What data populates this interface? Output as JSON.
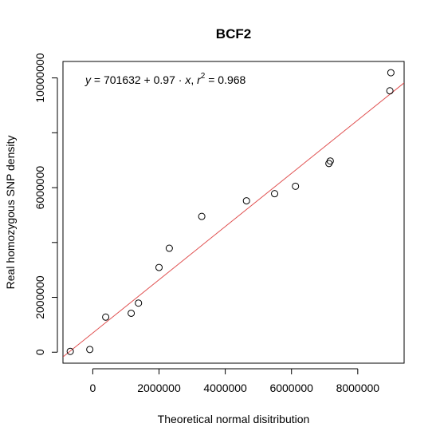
{
  "chart_data": {
    "type": "scatter",
    "title": "BCF2",
    "xlabel": "Theoretical normal disitribution",
    "ylabel": "Real homozygous SNP density",
    "xlim": [
      -900000,
      9400000
    ],
    "ylim": [
      -400000,
      10600000
    ],
    "x_ticks": [
      0,
      2000000,
      4000000,
      6000000,
      8000000
    ],
    "x_tick_labels": [
      "0",
      "2000000",
      "4000000",
      "6000000",
      "8000000"
    ],
    "y_ticks": [
      0,
      2000000,
      4000000,
      6000000,
      8000000,
      10000000
    ],
    "y_tick_labels": [
      "0",
      "2000000",
      "",
      "6000000",
      "",
      "10000000"
    ],
    "points": [
      {
        "x": -680000,
        "y": 30000
      },
      {
        "x": -90000,
        "y": 100000
      },
      {
        "x": 390000,
        "y": 1280000
      },
      {
        "x": 1160000,
        "y": 1420000
      },
      {
        "x": 1380000,
        "y": 1790000
      },
      {
        "x": 2000000,
        "y": 3090000
      },
      {
        "x": 2310000,
        "y": 3790000
      },
      {
        "x": 3290000,
        "y": 4950000
      },
      {
        "x": 4640000,
        "y": 5520000
      },
      {
        "x": 5490000,
        "y": 5780000
      },
      {
        "x": 6120000,
        "y": 6050000
      },
      {
        "x": 7130000,
        "y": 6880000
      },
      {
        "x": 7170000,
        "y": 6970000
      },
      {
        "x": 8970000,
        "y": 9530000
      },
      {
        "x": 9000000,
        "y": 10190000
      }
    ],
    "fit_line": {
      "intercept": 701632,
      "slope": 0.97,
      "color": "#e05050"
    },
    "annotation": {
      "y_var": "y",
      "equals_intercept": " = 701632 + 0.97 · ",
      "x_var": "x",
      "sep": ",  ",
      "r_var": "r",
      "r_exp": "2",
      "r_value": " = 0.968"
    },
    "grid": false,
    "legend": "none"
  }
}
